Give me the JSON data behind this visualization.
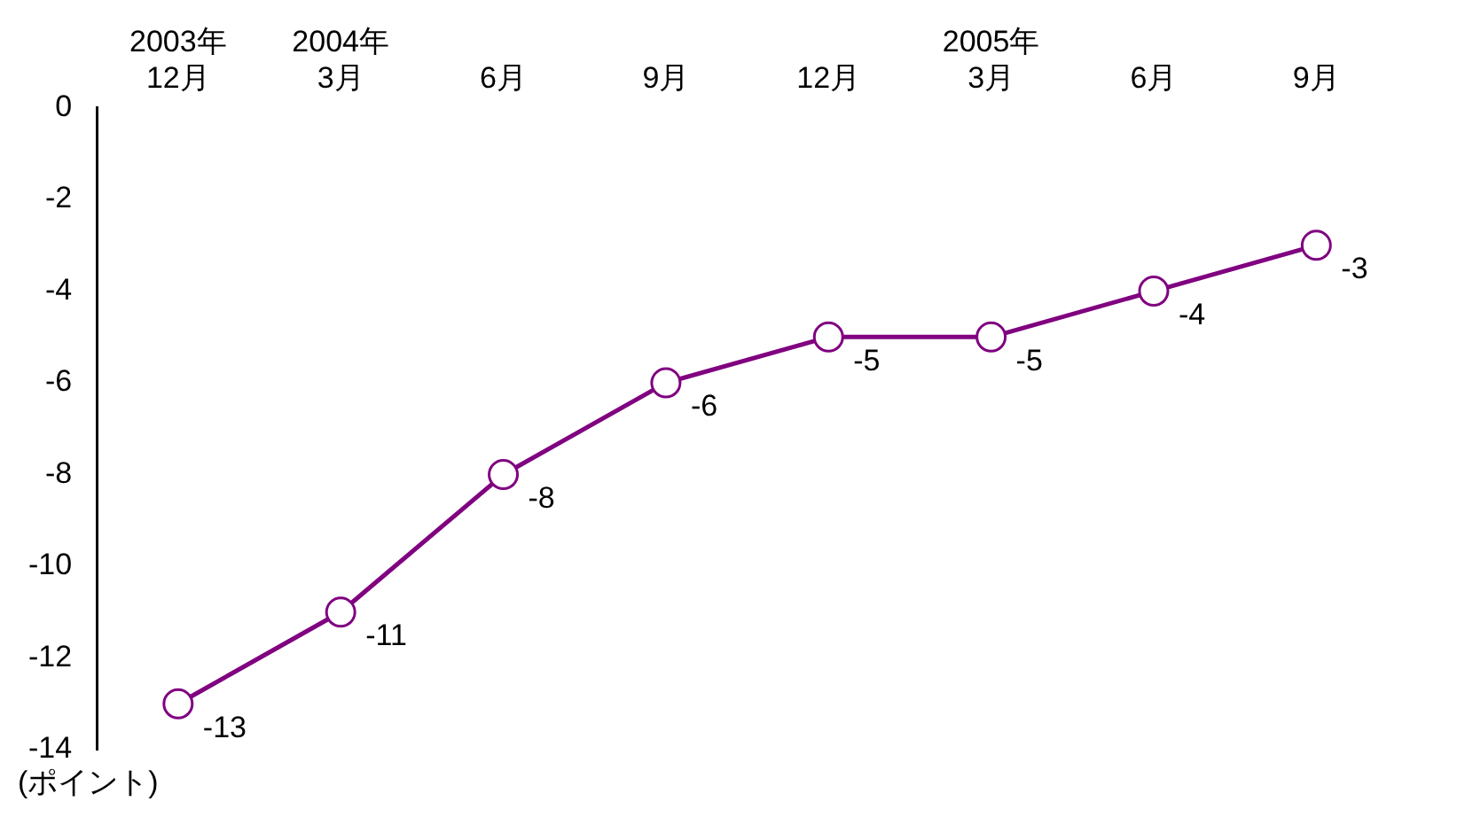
{
  "chart_data": {
    "type": "line",
    "ylabel": "(ポイント)",
    "categories": [
      "2003年\n12月",
      "2004年\n3月",
      "6月",
      "9月",
      "12月",
      "2005年\n3月",
      "6月",
      "9月"
    ],
    "series": [
      {
        "color": "#800080",
        "values": [
          -13,
          -11,
          -8,
          -6,
          -5,
          -5,
          -4,
          -3
        ]
      }
    ],
    "ylim": [
      -14,
      0
    ],
    "yticks": [
      0,
      -2,
      -4,
      -6,
      -8,
      -10,
      -12,
      -14
    ],
    "grid": false,
    "legend": false,
    "marker": "circle",
    "line_style": "solid",
    "data_labels": true
  }
}
